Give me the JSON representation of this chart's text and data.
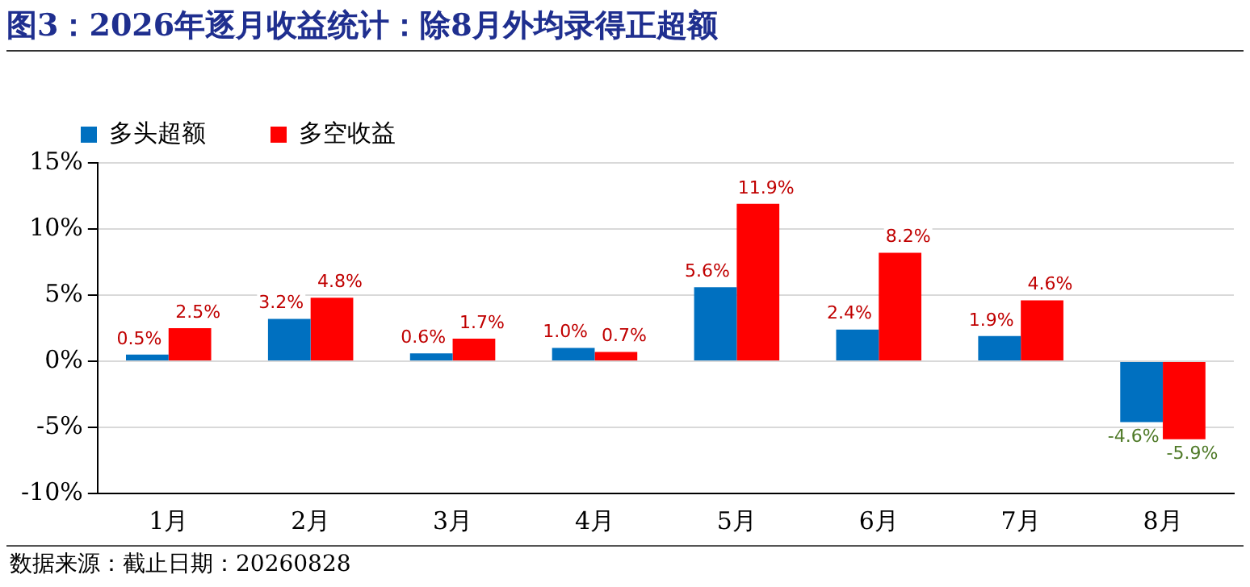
{
  "chart_data": {
    "type": "bar",
    "title": "图3：2026年逐月收益统计：除8月外均录得正超额",
    "categories": [
      "1月",
      "2月",
      "3月",
      "4月",
      "5月",
      "6月",
      "7月",
      "8月"
    ],
    "series": [
      {
        "name": "多头超额",
        "color": "#0070c0",
        "values": [
          0.5,
          3.2,
          0.6,
          1.0,
          5.6,
          2.4,
          1.9,
          -4.6
        ],
        "value_labels": [
          "0.5%",
          "3.2%",
          "0.6%",
          "1.0%",
          "5.6%",
          "2.4%",
          "1.9%",
          "-4.6%"
        ]
      },
      {
        "name": "多空收益",
        "color": "#ff0000",
        "values": [
          2.5,
          4.8,
          1.7,
          0.7,
          11.9,
          8.2,
          4.6,
          -5.9
        ],
        "value_labels": [
          "2.5%",
          "4.8%",
          "1.7%",
          "0.7%",
          "11.9%",
          "8.2%",
          "4.6%",
          "-5.9%"
        ]
      }
    ],
    "ylim": [
      -10,
      15
    ],
    "yticks": [
      {
        "value": -10,
        "label": "-10%"
      },
      {
        "value": -5,
        "label": "-5%"
      },
      {
        "value": 0,
        "label": "0%"
      },
      {
        "value": 5,
        "label": "5%"
      },
      {
        "value": 10,
        "label": "10%"
      },
      {
        "value": 15,
        "label": "15%"
      }
    ],
    "grid": "y",
    "legend": "top left",
    "annotations": [
      "数据来源：截止日期：20260828"
    ]
  }
}
